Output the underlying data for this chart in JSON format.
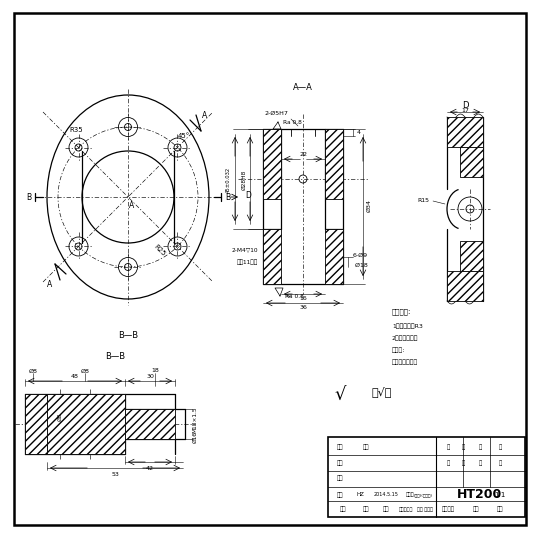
{
  "bg_color": "#ffffff",
  "title": "HT200",
  "scale": "1:1",
  "designer": "HZ",
  "date": "2014.5.15"
}
